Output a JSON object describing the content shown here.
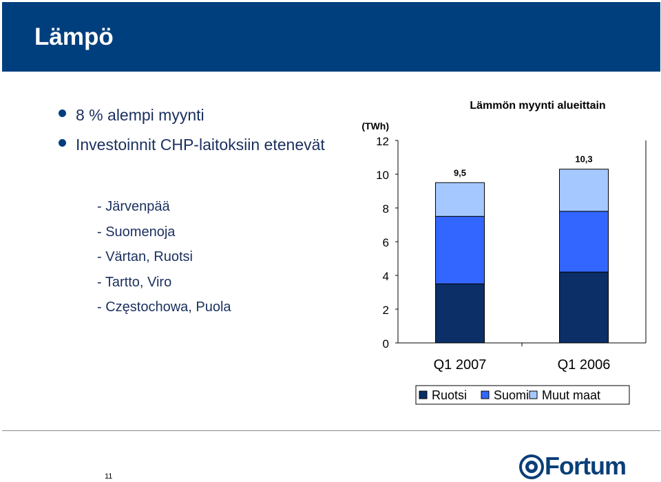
{
  "header": {
    "title": "Lämpö"
  },
  "bullets": [
    {
      "text": "8 % alempi myynti"
    },
    {
      "text": "Investoinnit CHP-laitoksiin etenevät"
    }
  ],
  "sub_items": [
    "- Järvenpää",
    "- Suomenoja",
    "- Värtan, Ruotsi",
    "- Tartto, Viro",
    "- Częstochowa, Puola"
  ],
  "chart_data": {
    "type": "bar",
    "stacked": true,
    "title": "Lämmön myynti alueittain",
    "unit": "(TWh)",
    "categories": [
      "Q1 2007",
      "Q1 2006"
    ],
    "series": [
      {
        "name": "Ruotsi",
        "color": "#0b2f66",
        "values": [
          3.5,
          4.2
        ]
      },
      {
        "name": "Suomi",
        "color": "#3366ff",
        "values": [
          4.0,
          3.6
        ]
      },
      {
        "name": "Muut maat",
        "color": "#a4c8ff",
        "values": [
          2.0,
          2.5
        ]
      }
    ],
    "totals": [
      "9,5",
      "10,3"
    ],
    "ylim": [
      0,
      12
    ],
    "yticks": [
      0,
      2,
      4,
      6,
      8,
      10,
      12
    ],
    "grid": false,
    "legend_position": "bottom"
  },
  "footer": {
    "page_number": "11",
    "logo_text": "Fortum"
  }
}
